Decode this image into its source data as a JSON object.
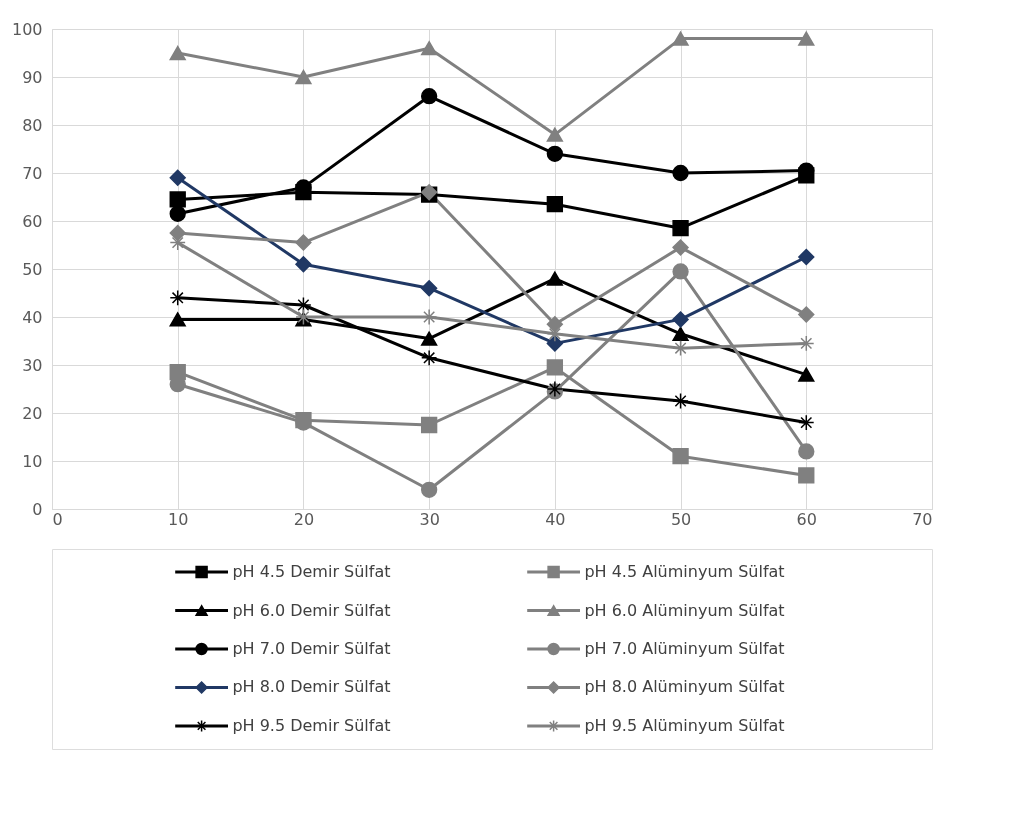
{
  "chart_data": {
    "type": "line",
    "x": [
      10,
      20,
      30,
      40,
      50,
      60
    ],
    "xlim": [
      0,
      70
    ],
    "xticks": [
      0,
      10,
      20,
      30,
      40,
      50,
      60,
      70
    ],
    "ylim": [
      0,
      100
    ],
    "yticks": [
      0,
      10,
      20,
      30,
      40,
      50,
      60,
      70,
      80,
      90,
      100
    ],
    "grid": true,
    "legend": "bottom",
    "series": [
      {
        "name": "pH 4.5 Demir Sülfat",
        "color": "#000000",
        "marker": "square",
        "values": [
          64.5,
          66,
          65.5,
          63.5,
          58.5,
          69.5
        ]
      },
      {
        "name": "pH 4.5 Alüminyum Sülfat",
        "color": "#808080",
        "marker": "square",
        "values": [
          28.5,
          18.5,
          17.5,
          29.5,
          11,
          7
        ]
      },
      {
        "name": "pH 6.0 Demir Sülfat",
        "color": "#000000",
        "marker": "triangle",
        "values": [
          39.5,
          39.5,
          35.5,
          48,
          36.5,
          28
        ]
      },
      {
        "name": "pH 6.0 Alüminyum Sülfat",
        "color": "#808080",
        "marker": "triangle",
        "values": [
          95,
          90,
          96,
          78,
          98,
          98
        ]
      },
      {
        "name": "pH 7.0 Demir Sülfat",
        "color": "#000000",
        "marker": "circle",
        "values": [
          61.5,
          67,
          86,
          74,
          70,
          70.5
        ]
      },
      {
        "name": "pH 7.0 Alüminyum Sülfat",
        "color": "#808080",
        "marker": "circle",
        "values": [
          26,
          18,
          4,
          24.5,
          49.5,
          12
        ]
      },
      {
        "name": "pH 8.0 Demir Sülfat",
        "color": "#203864",
        "marker": "diamond",
        "values": [
          69,
          51,
          46,
          34.5,
          39.5,
          52.5
        ]
      },
      {
        "name": "pH 8.0 Alüminyum Sülfat",
        "color": "#808080",
        "marker": "diamond",
        "values": [
          57.5,
          55.5,
          66,
          38.5,
          54.5,
          40.5
        ]
      },
      {
        "name": "pH 9.5 Demir Sülfat",
        "color": "#000000",
        "marker": "cross",
        "values": [
          44,
          42.5,
          31.5,
          25,
          22.5,
          18
        ]
      },
      {
        "name": "pH 9.5 Alüminyum Sülfat",
        "color": "#808080",
        "marker": "cross",
        "values": [
          55.5,
          40,
          40,
          36.5,
          33.5,
          34.5
        ]
      }
    ]
  }
}
